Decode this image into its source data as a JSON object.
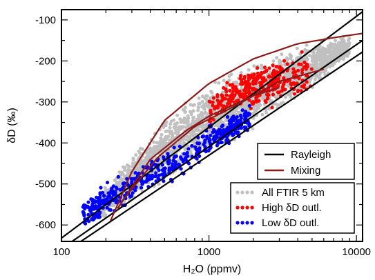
{
  "chart_data": {
    "type": "scatter",
    "xscale": "log",
    "xlim": [
      100,
      11000
    ],
    "ylim": [
      -640,
      -75
    ],
    "x_ticks": [
      100,
      1000,
      10000
    ],
    "x_tick_labels": [
      "100",
      "1000",
      "10000"
    ],
    "y_ticks": [
      -600,
      -500,
      -400,
      -300,
      -200,
      -100
    ],
    "y_tick_labels": [
      "-600",
      "-500",
      "-400",
      "-300",
      "-200",
      "-100"
    ],
    "xlabel": "H₂O (ppmv)",
    "ylabel": "δD (‰)",
    "grid": false,
    "series": [
      {
        "name": "All FTIR 5 km",
        "kind": "scatter",
        "color": "#c0c0c0",
        "band": {
          "x_range": [
            180,
            9000
          ],
          "center": [
            [
              180,
              -560
            ],
            [
              300,
              -485
            ],
            [
              500,
              -420
            ],
            [
              1000,
              -345
            ],
            [
              2000,
              -285
            ],
            [
              4000,
              -225
            ],
            [
              6000,
              -195
            ],
            [
              9000,
              -165
            ]
          ],
          "half_width": [
            [
              180,
              25
            ],
            [
              300,
              40
            ],
            [
              500,
              55
            ],
            [
              1000,
              60
            ],
            [
              2000,
              55
            ],
            [
              4000,
              45
            ],
            [
              6000,
              35
            ],
            [
              9000,
              20
            ]
          ]
        }
      },
      {
        "name": "High δD outl.",
        "kind": "scatter",
        "color": "#ff0000",
        "clusters": [
          {
            "x_range": [
              1000,
              2800
            ],
            "center": [
              [
                1000,
                -325
              ],
              [
                1500,
                -275
              ],
              [
                2000,
                -255
              ],
              [
                2800,
                -240
              ]
            ],
            "half_width": 35
          },
          {
            "x_range": [
              1600,
              5000
            ],
            "center": [
              [
                1600,
                -285
              ],
              [
                2500,
                -265
              ],
              [
                3500,
                -240
              ],
              [
                5000,
                -225
              ]
            ],
            "half_width": 40
          }
        ]
      },
      {
        "name": "Low δD outl.",
        "kind": "scatter",
        "color": "#0000ff",
        "clusters": [
          {
            "x_range": [
              140,
              300
            ],
            "center": [
              [
                140,
                -580
              ],
              [
                200,
                -540
              ],
              [
                300,
                -510
              ]
            ],
            "half_width": 30
          },
          {
            "x_range": [
              300,
              1000
            ],
            "center": [
              [
                300,
                -500
              ],
              [
                500,
                -460
              ],
              [
                700,
                -435
              ],
              [
                1000,
                -395
              ]
            ],
            "half_width": 30
          },
          {
            "x_range": [
              1000,
              1900
            ],
            "center": [
              [
                1000,
                -395
              ],
              [
                1400,
                -365
              ],
              [
                1900,
                -335
              ]
            ],
            "half_width": 25
          }
        ]
      },
      {
        "name": "Rayleigh",
        "kind": "line",
        "color": "#000000",
        "lines": [
          [
            [
              100,
              -632
            ],
            [
              11000,
              -80
            ]
          ],
          [
            [
              100,
              -658
            ],
            [
              11000,
              -150
            ]
          ],
          [
            [
              100,
              -672
            ],
            [
              11000,
              -178
            ]
          ]
        ]
      },
      {
        "name": "Mixing",
        "kind": "line",
        "color": "#8b1a1a",
        "lines": [
          [
            [
              215,
              -590
            ],
            [
              300,
              -470
            ],
            [
              500,
              -345
            ],
            [
              1000,
              -255
            ],
            [
              2000,
              -195
            ],
            [
              4000,
              -158
            ],
            [
              8000,
              -140
            ],
            [
              11000,
              -133
            ]
          ],
          [
            [
              240,
              -560
            ],
            [
              400,
              -440
            ],
            [
              700,
              -370
            ],
            [
              1000,
              -335
            ],
            [
              2000,
              -285
            ],
            [
              3000,
              -265
            ]
          ],
          [
            [
              260,
              -540
            ],
            [
              450,
              -435
            ],
            [
              800,
              -360
            ],
            [
              1500,
              -310
            ],
            [
              3000,
              -250
            ],
            [
              6000,
              -220
            ]
          ]
        ]
      }
    ],
    "legend": {
      "placement": "bottom-right",
      "boxes": [
        {
          "entries": [
            {
              "label": "Rayleigh",
              "type": "line",
              "color": "#000000"
            },
            {
              "label": "Mixing",
              "type": "line",
              "color": "#8b1a1a"
            }
          ]
        },
        {
          "entries": [
            {
              "label": "All FTIR 5 km",
              "type": "dots",
              "color": "#c0c0c0"
            },
            {
              "label": "High δD outl.",
              "type": "dots",
              "color": "#ff0000"
            },
            {
              "label": "Low δD outl.",
              "type": "dots",
              "color": "#0000ff"
            }
          ]
        }
      ]
    }
  }
}
